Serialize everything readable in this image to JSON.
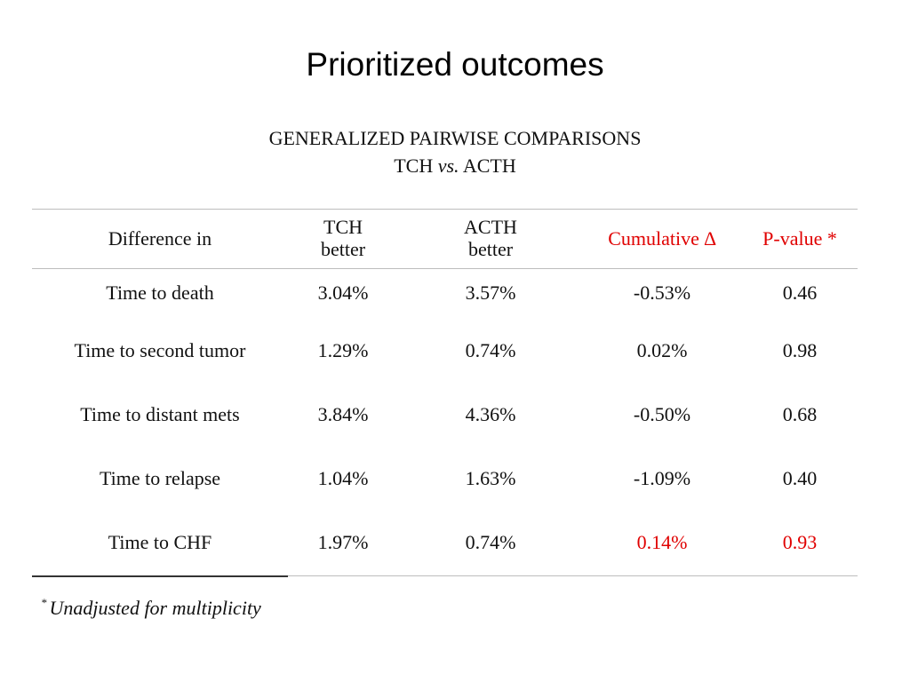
{
  "slide": {
    "title": "Prioritized outcomes",
    "subtitle_line1": "GENERALIZED PAIRWISE COMPARISONS",
    "subtitle_line2_a": "TCH",
    "subtitle_line2_vs": "vs.",
    "subtitle_line2_b": "ACTH"
  },
  "table": {
    "headers": {
      "difference_in": "Difference in",
      "tch_line1": "TCH",
      "tch_line2": "better",
      "acth_line1": "ACTH",
      "acth_line2": "better",
      "cumulative": "Cumulative ∆",
      "pvalue": "P-value *"
    },
    "rows": [
      {
        "label": "Time to death",
        "tch": "3.04%",
        "acth": "3.57%",
        "cumulative": "-0.53%",
        "p": "0.46",
        "highlight": false
      },
      {
        "label": "Time to second tumor",
        "tch": "1.29%",
        "acth": "0.74%",
        "cumulative": "0.02%",
        "p": "0.98",
        "highlight": false
      },
      {
        "label": "Time to distant mets",
        "tch": "3.84%",
        "acth": "4.36%",
        "cumulative": "-0.50%",
        "p": "0.68",
        "highlight": false
      },
      {
        "label": "Time to relapse",
        "tch": "1.04%",
        "acth": "1.63%",
        "cumulative": "-1.09%",
        "p": "0.40",
        "highlight": false
      },
      {
        "label": "Time to CHF",
        "tch": "1.97%",
        "acth": "0.74%",
        "cumulative": "0.14%",
        "p": "0.93",
        "highlight": true
      }
    ]
  },
  "footnote": {
    "marker": "*",
    "text": "Unadjusted for multiplicity"
  },
  "colors": {
    "highlight": "#e00000",
    "rule": "#bdbdbd"
  }
}
